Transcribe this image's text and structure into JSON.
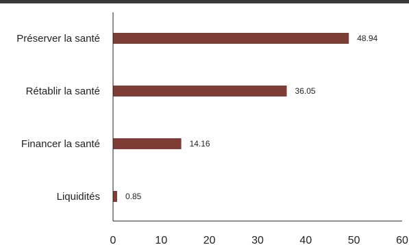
{
  "chart_data": {
    "type": "bar",
    "orientation": "horizontal",
    "categories": [
      "Préserver la santé",
      "Rétablir la santé",
      "Financer la santé",
      "Liquidités"
    ],
    "values": [
      48.94,
      36.05,
      14.16,
      0.85
    ],
    "value_labels": [
      "48.94",
      "36.05",
      "14.16",
      "0.85"
    ],
    "xlim": [
      0,
      60
    ],
    "x_ticks": [
      "0",
      "10",
      "20",
      "30",
      "40",
      "50",
      "60"
    ],
    "title": "",
    "xlabel": "",
    "ylabel": "",
    "grid": false,
    "legend": "none",
    "bar_color": "#7e3e35",
    "axis_color": "#222222"
  }
}
